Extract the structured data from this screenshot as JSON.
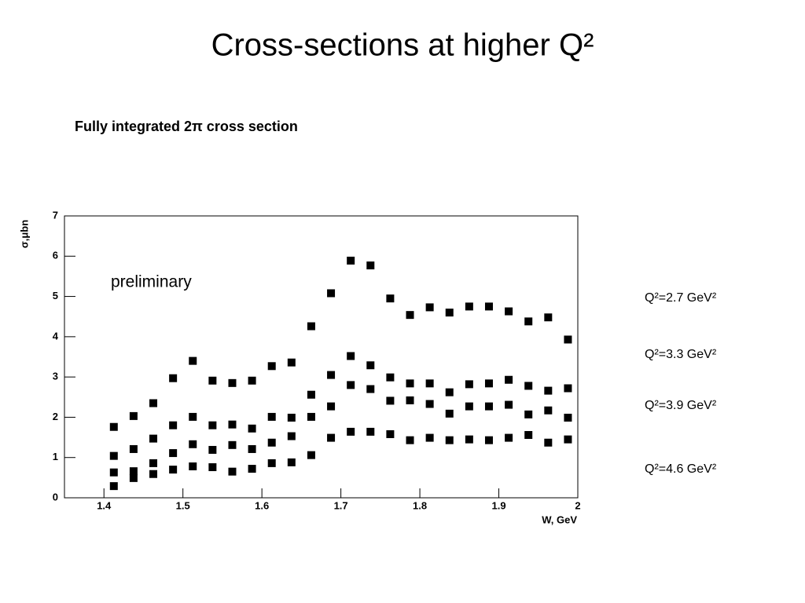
{
  "chart_data": {
    "type": "scatter",
    "title": "Cross-sections at higher Q²",
    "subtitle": "Fully integrated 2π cross section",
    "x_label": "W, GeV",
    "y_label": "σ,μbn",
    "annotation": "preliminary",
    "x": [
      1.4125,
      1.4375,
      1.4625,
      1.4875,
      1.5125,
      1.5375,
      1.5625,
      1.5875,
      1.6125,
      1.6375,
      1.6625,
      1.6875,
      1.7125,
      1.7375,
      1.7625,
      1.7875,
      1.8125,
      1.8375,
      1.8625,
      1.8875,
      1.9125,
      1.9375,
      1.9625,
      1.9875
    ],
    "series": [
      {
        "name": "Q²=2.7 GeV²",
        "color": "#000000",
        "values": [
          1.76,
          2.03,
          2.35,
          2.97,
          3.4,
          2.91,
          2.85,
          2.91,
          3.27,
          3.36,
          4.26,
          5.08,
          5.89,
          5.77,
          4.95,
          4.54,
          4.73,
          4.6,
          4.75,
          4.75,
          4.63,
          4.38,
          4.48,
          3.93
        ]
      },
      {
        "name": "Q²=3.3 GeV²",
        "color": "#000000",
        "values": [
          1.04,
          1.21,
          1.47,
          1.8,
          2.01,
          1.8,
          1.82,
          1.72,
          2.01,
          1.99,
          2.56,
          3.05,
          3.52,
          3.29,
          2.99,
          2.84,
          2.84,
          2.62,
          2.82,
          2.84,
          2.93,
          2.78,
          2.66,
          2.72
        ]
      },
      {
        "name": "Q²=3.9 GeV²",
        "color": "#000000",
        "values": [
          0.63,
          0.66,
          0.86,
          1.11,
          1.33,
          1.19,
          1.31,
          1.21,
          1.37,
          1.53,
          2.01,
          2.27,
          2.8,
          2.7,
          2.41,
          2.42,
          2.33,
          2.09,
          2.27,
          2.27,
          2.31,
          2.07,
          2.17,
          1.99
        ]
      },
      {
        "name": "Q²=4.6 GeV²",
        "color": "#000000",
        "values": [
          0.29,
          0.49,
          0.59,
          0.7,
          0.78,
          0.76,
          0.65,
          0.72,
          0.86,
          0.88,
          1.06,
          1.49,
          1.64,
          1.64,
          1.58,
          1.43,
          1.49,
          1.43,
          1.45,
          1.43,
          1.49,
          1.56,
          1.37,
          1.45
        ]
      }
    ],
    "xlim": [
      1.35,
      2.0
    ],
    "xticks": [
      1.4,
      1.5,
      1.6,
      1.7,
      1.8,
      1.9,
      2
    ],
    "ylim": [
      0,
      7
    ],
    "yticks": [
      0,
      1,
      2,
      3,
      4,
      5,
      6,
      7
    ],
    "grid": false
  }
}
